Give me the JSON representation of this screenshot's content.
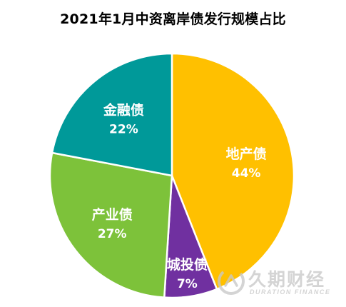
{
  "title": "2021年1月中资离岸债发行规模占比",
  "watermark": {
    "cn": "久期财经",
    "en": "DURATION FINANCE"
  },
  "chart_data": {
    "type": "pie",
    "title": "2021年1月中资离岸债发行规模占比",
    "start_angle_deg": 0,
    "direction": "clockwise",
    "slices": [
      {
        "label": "地产债",
        "value": 44,
        "percent_label": "44%",
        "color": "#FFC000"
      },
      {
        "label": "城投债",
        "value": 7,
        "percent_label": "7%",
        "color": "#7030A0"
      },
      {
        "label": "产业债",
        "value": 27,
        "percent_label": "27%",
        "color": "#7DC23A"
      },
      {
        "label": "金融债",
        "value": 22,
        "percent_label": "22%",
        "color": "#009999"
      }
    ]
  }
}
